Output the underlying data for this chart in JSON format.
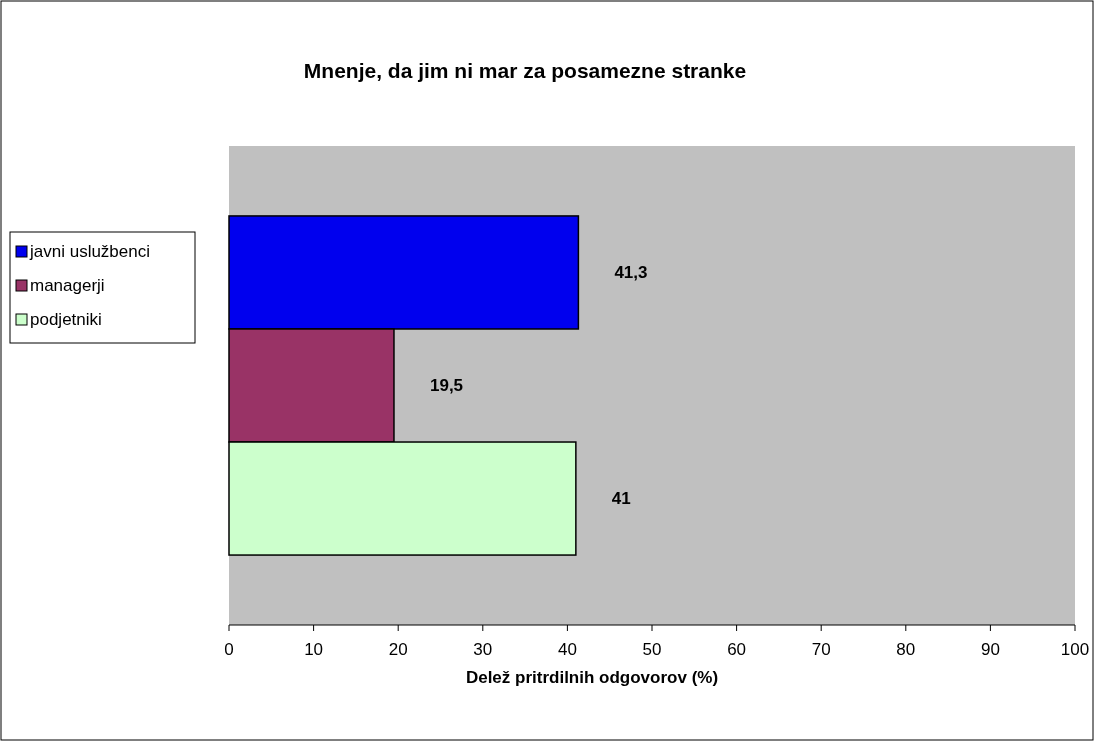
{
  "chart_data": {
    "type": "bar",
    "orientation": "horizontal",
    "title": "Mnenje, da jim ni mar za posamezne stranke",
    "xlabel": "Delež pritrdilnih odgovorov (%)",
    "categories": [
      null
    ],
    "series": [
      {
        "name": "javni uslužbenci",
        "color": "#0000ee",
        "values": [
          41.3
        ],
        "value_labels": [
          "41,3"
        ]
      },
      {
        "name": "managerji",
        "color": "#993366",
        "values": [
          19.5
        ],
        "value_labels": [
          "19,5"
        ]
      },
      {
        "name": "podjetniki",
        "color": "#ccffcc",
        "values": [
          41
        ],
        "value_labels": [
          "41"
        ]
      }
    ],
    "xlim": [
      0,
      100
    ],
    "xticks": [
      0,
      10,
      20,
      30,
      40,
      50,
      60,
      70,
      80,
      90,
      100
    ],
    "grid": false,
    "legend": "left"
  }
}
